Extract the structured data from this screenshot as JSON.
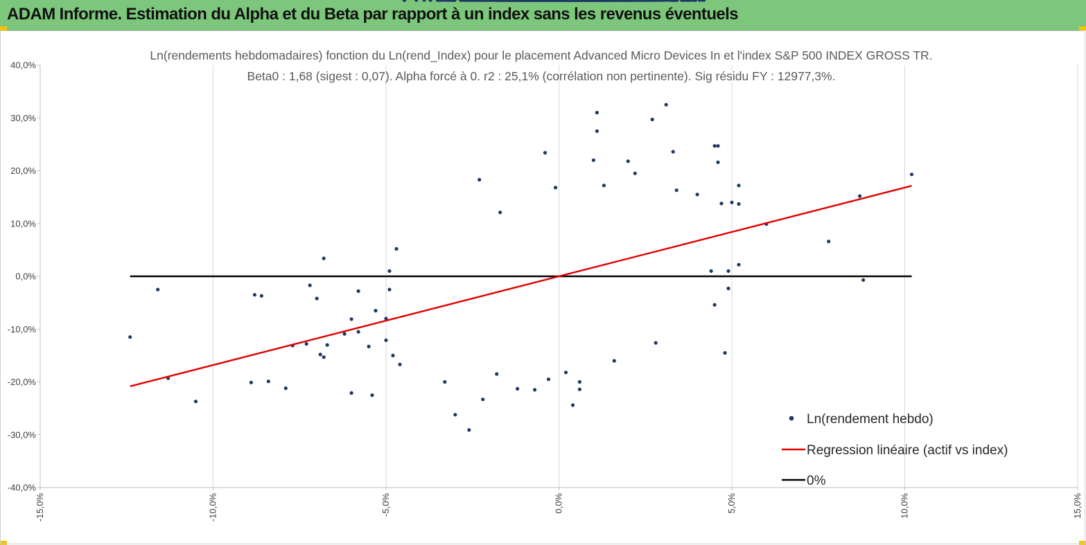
{
  "header": {
    "title": "ADAM Informe. Estimation du Alpha et du Beta par rapport à un index sans les revenus éventuels",
    "background": "#7dc77d"
  },
  "chart_data": {
    "type": "scatter",
    "title_line1": "Ln(rendements hebdomadaires) fonction du Ln(rend_Index) pour le placement Advanced Micro Devices In et l'index S&P 500 INDEX GROSS TR.",
    "title_line2": "Beta0 : 1,68 (sigest : 0,07). Alpha forcé à 0. r2 : 25,1% (corrélation non pertinente). Sig résidu FY : 12977,3%.",
    "xlim": [
      -0.15,
      0.15
    ],
    "ylim": [
      -0.4,
      0.4
    ],
    "x_ticks": [
      "-15,0%",
      "-10,0%",
      "-5,0%",
      "0,0%",
      "5,0%",
      "10,0%",
      "15,0%"
    ],
    "y_ticks": [
      "40,0%",
      "30,0%",
      "20,0%",
      "10,0%",
      "0,0%",
      "-10,0%",
      "-20,0%",
      "-30,0%",
      "-40,0%"
    ],
    "grid": "vertical",
    "legend_position": "bottom-right",
    "colors": {
      "points": "#203864",
      "regression": "#e00000",
      "zero": "#000000"
    },
    "series": [
      {
        "name": "Ln(rendement hebdo)",
        "kind": "scatter",
        "cloud_size": 1200,
        "points": [
          [
            -0.124,
            -0.115
          ],
          [
            -0.116,
            -0.025
          ],
          [
            -0.113,
            -0.193
          ],
          [
            -0.105,
            -0.237
          ],
          [
            -0.089,
            -0.201
          ],
          [
            -0.088,
            -0.035
          ],
          [
            -0.086,
            -0.037
          ],
          [
            -0.084,
            -0.199
          ],
          [
            -0.079,
            -0.212
          ],
          [
            -0.077,
            -0.131
          ],
          [
            -0.073,
            -0.128
          ],
          [
            -0.072,
            -0.017
          ],
          [
            -0.07,
            -0.042
          ],
          [
            -0.069,
            -0.148
          ],
          [
            -0.068,
            -0.153
          ],
          [
            -0.068,
            0.034
          ],
          [
            -0.067,
            -0.13
          ],
          [
            -0.062,
            -0.109
          ],
          [
            -0.06,
            -0.081
          ],
          [
            -0.06,
            -0.221
          ],
          [
            -0.058,
            -0.105
          ],
          [
            -0.058,
            -0.028
          ],
          [
            -0.055,
            -0.133
          ],
          [
            -0.054,
            -0.225
          ],
          [
            -0.053,
            -0.065
          ],
          [
            -0.05,
            -0.121
          ],
          [
            -0.049,
            0.01
          ],
          [
            -0.049,
            -0.025
          ],
          [
            -0.048,
            -0.15
          ],
          [
            -0.047,
            0.052
          ],
          [
            -0.046,
            -0.167
          ],
          [
            -0.05,
            -0.08
          ],
          [
            -0.03,
            -0.262
          ],
          [
            -0.026,
            -0.291
          ],
          [
            -0.023,
            0.183
          ],
          [
            -0.033,
            -0.2
          ],
          [
            -0.022,
            -0.233
          ],
          [
            -0.018,
            -0.185
          ],
          [
            -0.017,
            0.121
          ],
          [
            -0.012,
            -0.213
          ],
          [
            -0.007,
            -0.215
          ],
          [
            -0.004,
            0.234
          ],
          [
            -0.003,
            -0.195
          ],
          [
            -0.001,
            0.168
          ],
          [
            0.002,
            -0.182
          ],
          [
            0.004,
            -0.244
          ],
          [
            0.006,
            -0.2
          ],
          [
            0.006,
            -0.214
          ],
          [
            0.01,
            0.22
          ],
          [
            0.011,
            0.275
          ],
          [
            0.011,
            0.31
          ],
          [
            0.013,
            0.172
          ],
          [
            0.016,
            -0.16
          ],
          [
            0.02,
            0.218
          ],
          [
            0.022,
            0.195
          ],
          [
            0.027,
            0.297
          ],
          [
            0.028,
            -0.126
          ],
          [
            0.031,
            0.325
          ],
          [
            0.033,
            0.236
          ],
          [
            0.034,
            0.163
          ],
          [
            0.04,
            0.155
          ],
          [
            0.044,
            0.01
          ],
          [
            0.045,
            0.247
          ],
          [
            0.046,
            0.247
          ],
          [
            0.046,
            0.216
          ],
          [
            0.045,
            -0.054
          ],
          [
            0.047,
            0.138
          ],
          [
            0.048,
            -0.145
          ],
          [
            0.049,
            -0.023
          ],
          [
            0.049,
            0.01
          ],
          [
            0.05,
            0.14
          ],
          [
            0.052,
            0.172
          ],
          [
            0.052,
            0.137
          ],
          [
            0.052,
            0.022
          ],
          [
            0.06,
            0.099
          ],
          [
            0.078,
            0.066
          ],
          [
            0.087,
            0.152
          ],
          [
            0.088,
            -0.007
          ],
          [
            0.102,
            0.193
          ]
        ]
      },
      {
        "name": "Regression linéaire (actif vs index)",
        "kind": "line",
        "slope": 1.68,
        "x_range": [
          -0.124,
          0.102
        ]
      },
      {
        "name": "0%",
        "kind": "line",
        "y": 0,
        "x_range": [
          -0.124,
          0.102
        ]
      }
    ]
  }
}
